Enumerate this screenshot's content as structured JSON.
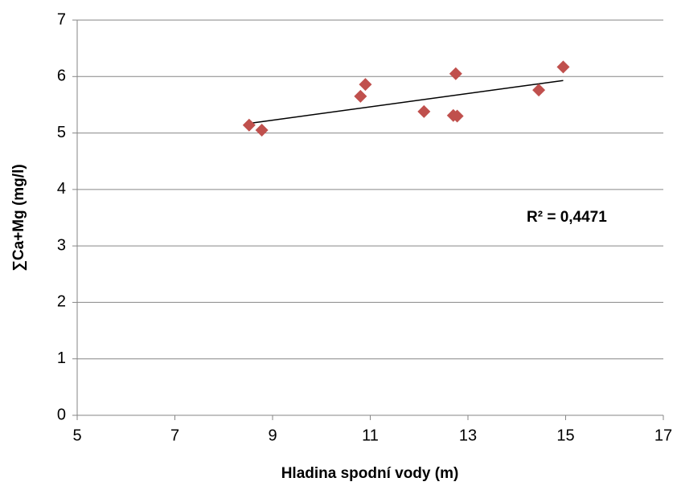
{
  "chart_data": {
    "type": "scatter",
    "x_label": "Hladina spodní vody (m)",
    "y_label": "∑Ca+Mg (mg/l)",
    "annotation": "R² = 0,4471",
    "x": [
      8.52,
      8.78,
      10.8,
      10.9,
      12.1,
      12.7,
      12.78,
      12.75,
      14.45,
      14.95
    ],
    "series": [
      {
        "name": "Ca+Mg",
        "color": "#c0504d",
        "values": [
          5.14,
          5.05,
          5.65,
          5.86,
          5.38,
          5.31,
          5.3,
          6.05,
          5.76,
          6.17
        ]
      }
    ],
    "trendline": {
      "color": "#000000",
      "x": [
        8.52,
        14.95
      ],
      "y": [
        5.17,
        5.93
      ]
    },
    "xlim": [
      5,
      17
    ],
    "xticks": [
      5,
      7,
      9,
      11,
      13,
      15,
      17
    ],
    "ylim": [
      0,
      7
    ],
    "yticks": [
      0,
      1,
      2,
      3,
      4,
      5,
      6,
      7
    ],
    "grid": true
  }
}
